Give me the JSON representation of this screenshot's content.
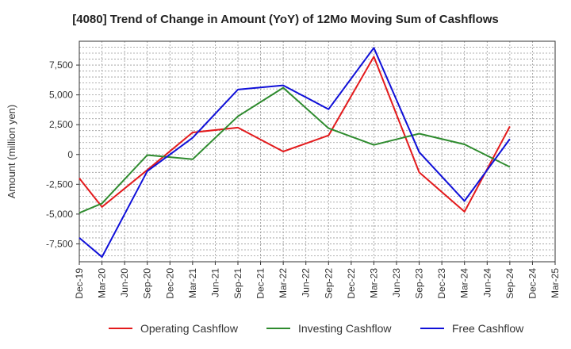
{
  "chart_data": {
    "type": "line",
    "title": "[4080]  Trend of Change in Amount (YoY) of 12Mo Moving Sum of Cashflows",
    "xlabel": "",
    "ylabel": "Amount (million yen)",
    "ylim": [
      -9000,
      9500
    ],
    "yticks": [
      -7500,
      -5000,
      -2500,
      0,
      2500,
      5000,
      7500
    ],
    "ytick_labels": [
      "-7,500",
      "-5,000",
      "-2,500",
      "0",
      "2,500",
      "5,000",
      "7,500"
    ],
    "grid": true,
    "legend_position": "bottom",
    "categories": [
      "Dec-19",
      "Mar-20",
      "Jun-20",
      "Sep-20",
      "Dec-20",
      "Mar-21",
      "Jun-21",
      "Sep-21",
      "Dec-21",
      "Mar-22",
      "Jun-22",
      "Sep-22",
      "Dec-22",
      "Mar-23",
      "Jun-23",
      "Sep-23",
      "Dec-23",
      "Mar-24",
      "Jun-24",
      "Sep-24",
      "Dec-24",
      "Mar-25"
    ],
    "series": [
      {
        "name": "Operating Cashflow",
        "color": "#e31a1c",
        "values": [
          -2000,
          -4400,
          null,
          -1300,
          null,
          1850,
          null,
          2250,
          null,
          250,
          null,
          1600,
          null,
          8200,
          null,
          -1500,
          null,
          -4800,
          null,
          2350,
          null,
          null
        ]
      },
      {
        "name": "Investing Cashflow",
        "color": "#2e8b2e",
        "values": [
          -4900,
          -4100,
          null,
          -50,
          null,
          -400,
          null,
          3200,
          null,
          5600,
          null,
          2200,
          null,
          800,
          null,
          1750,
          null,
          850,
          null,
          -1050,
          null,
          null
        ]
      },
      {
        "name": "Free Cashflow",
        "color": "#1010d8",
        "values": [
          -7000,
          -8600,
          null,
          -1400,
          null,
          1400,
          null,
          5450,
          null,
          5800,
          null,
          3800,
          null,
          8950,
          null,
          200,
          null,
          -3900,
          null,
          1300,
          null,
          null
        ]
      }
    ]
  }
}
